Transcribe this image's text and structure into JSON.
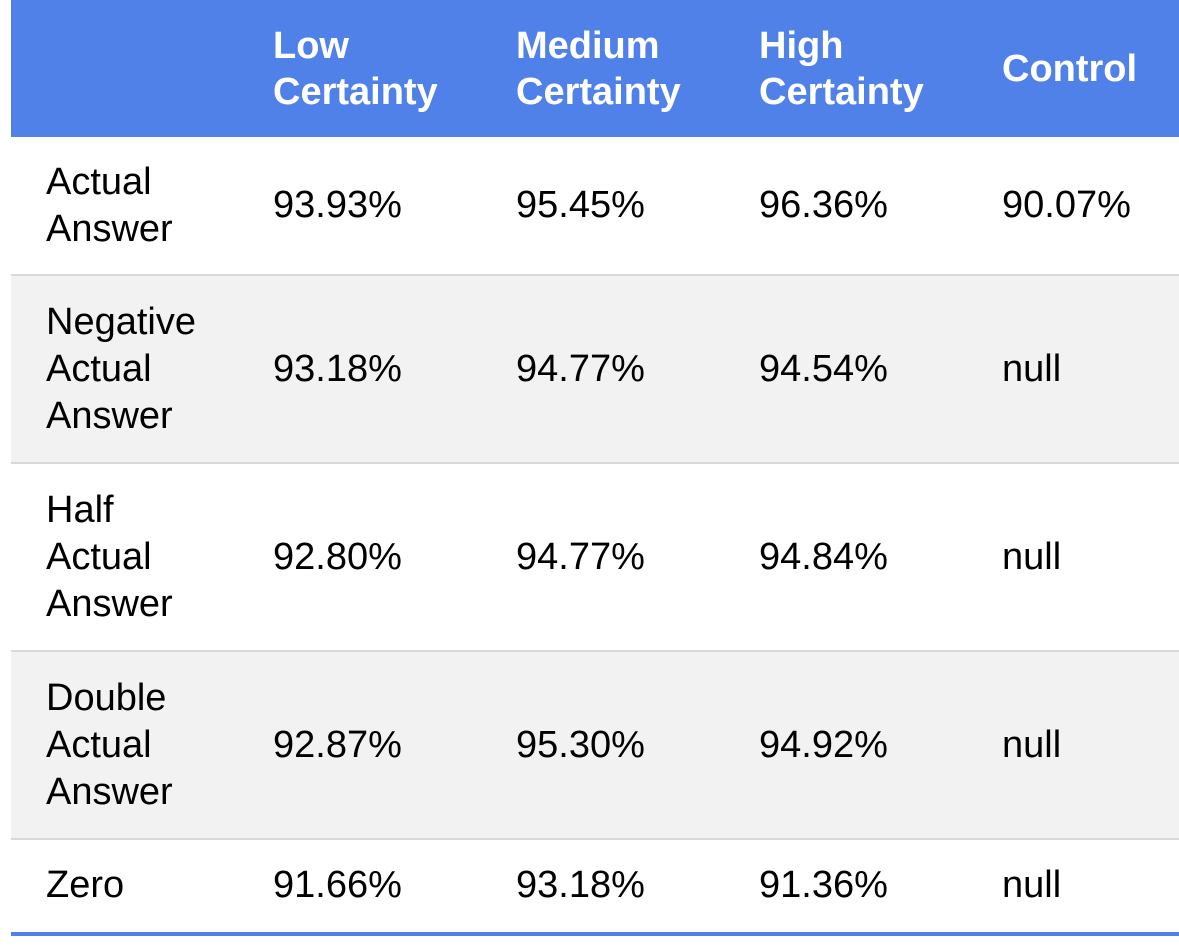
{
  "colors": {
    "header_bg": "#4f81e8",
    "header_text": "#ffffff",
    "alt_row_bg": "#f2f2f2",
    "rule": "#4f81e8"
  },
  "table": {
    "headers": [
      "",
      "Low Certainty",
      "Medium Certainty",
      "High Certainty",
      "Control"
    ],
    "rows": [
      {
        "label": "Actual Answer",
        "values": [
          "93.93%",
          "95.45%",
          "96.36%",
          "90.07%"
        ]
      },
      {
        "label": "Negative Actual Answer",
        "values": [
          "93.18%",
          "94.77%",
          "94.54%",
          "null"
        ]
      },
      {
        "label": "Half Actual Answer",
        "values": [
          "92.80%",
          "94.77%",
          "94.84%",
          "null"
        ]
      },
      {
        "label": "Double Actual Answer",
        "values": [
          "92.87%",
          "95.30%",
          "94.92%",
          "null"
        ]
      },
      {
        "label": "Zero",
        "values": [
          "91.66%",
          "93.18%",
          "91.36%",
          "null"
        ]
      }
    ]
  }
}
